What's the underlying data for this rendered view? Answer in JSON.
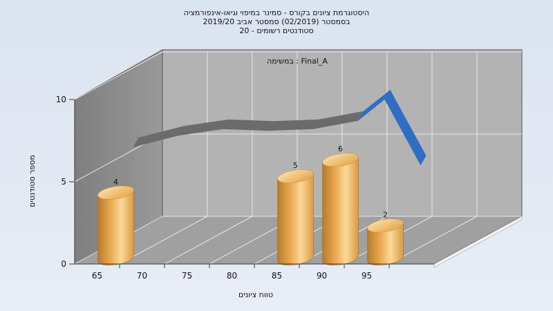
{
  "chart_data": {
    "type": "bar",
    "title_lines": [
      "היסטוגרמת ציונים בקורס - סמינר במיפוי וגיאו-אינפורמציה",
      "בסמסטר  (02/2019)  סמסטר אביב 2019/20",
      "סטודנטים רשומים - 20"
    ],
    "annotation": "במשימה : Final_A",
    "xlabel": "טווח ציונים",
    "ylabel": "מספר סטודנטים",
    "x_ticks": [
      "65",
      "70",
      "75",
      "80",
      "85",
      "90",
      "95"
    ],
    "y_ticks": [
      "0",
      "5",
      "10"
    ],
    "ylim": [
      0,
      10
    ],
    "grid": true,
    "bars": [
      {
        "x": 65,
        "value": 4,
        "label": "4"
      },
      {
        "x": 85,
        "value": 5,
        "label": "5"
      },
      {
        "x": 90,
        "value": 6,
        "label": "6"
      },
      {
        "x": 95,
        "value": 2,
        "label": "2"
      }
    ],
    "background_curve": [
      {
        "x": 65,
        "y": 6.3
      },
      {
        "x": 70,
        "y": 7.0
      },
      {
        "x": 75,
        "y": 7.4
      },
      {
        "x": 80,
        "y": 7.3
      },
      {
        "x": 85,
        "y": 7.4
      },
      {
        "x": 90,
        "y": 7.9
      },
      {
        "x": 93,
        "y": 9.2
      },
      {
        "x": 97,
        "y": 5.2
      }
    ],
    "colors": {
      "background": "#dde5f1",
      "back_wall": "#b3b3b3",
      "left_wall": "#8e8e8e",
      "floor": "#a0a0a0",
      "bar_light": "#fbd99a",
      "bar_mid": "#e9a850",
      "bar_dark": "#b77b2a",
      "curve_gray": "#6b6b6b",
      "curve_blue": "#2f6ec2"
    }
  }
}
